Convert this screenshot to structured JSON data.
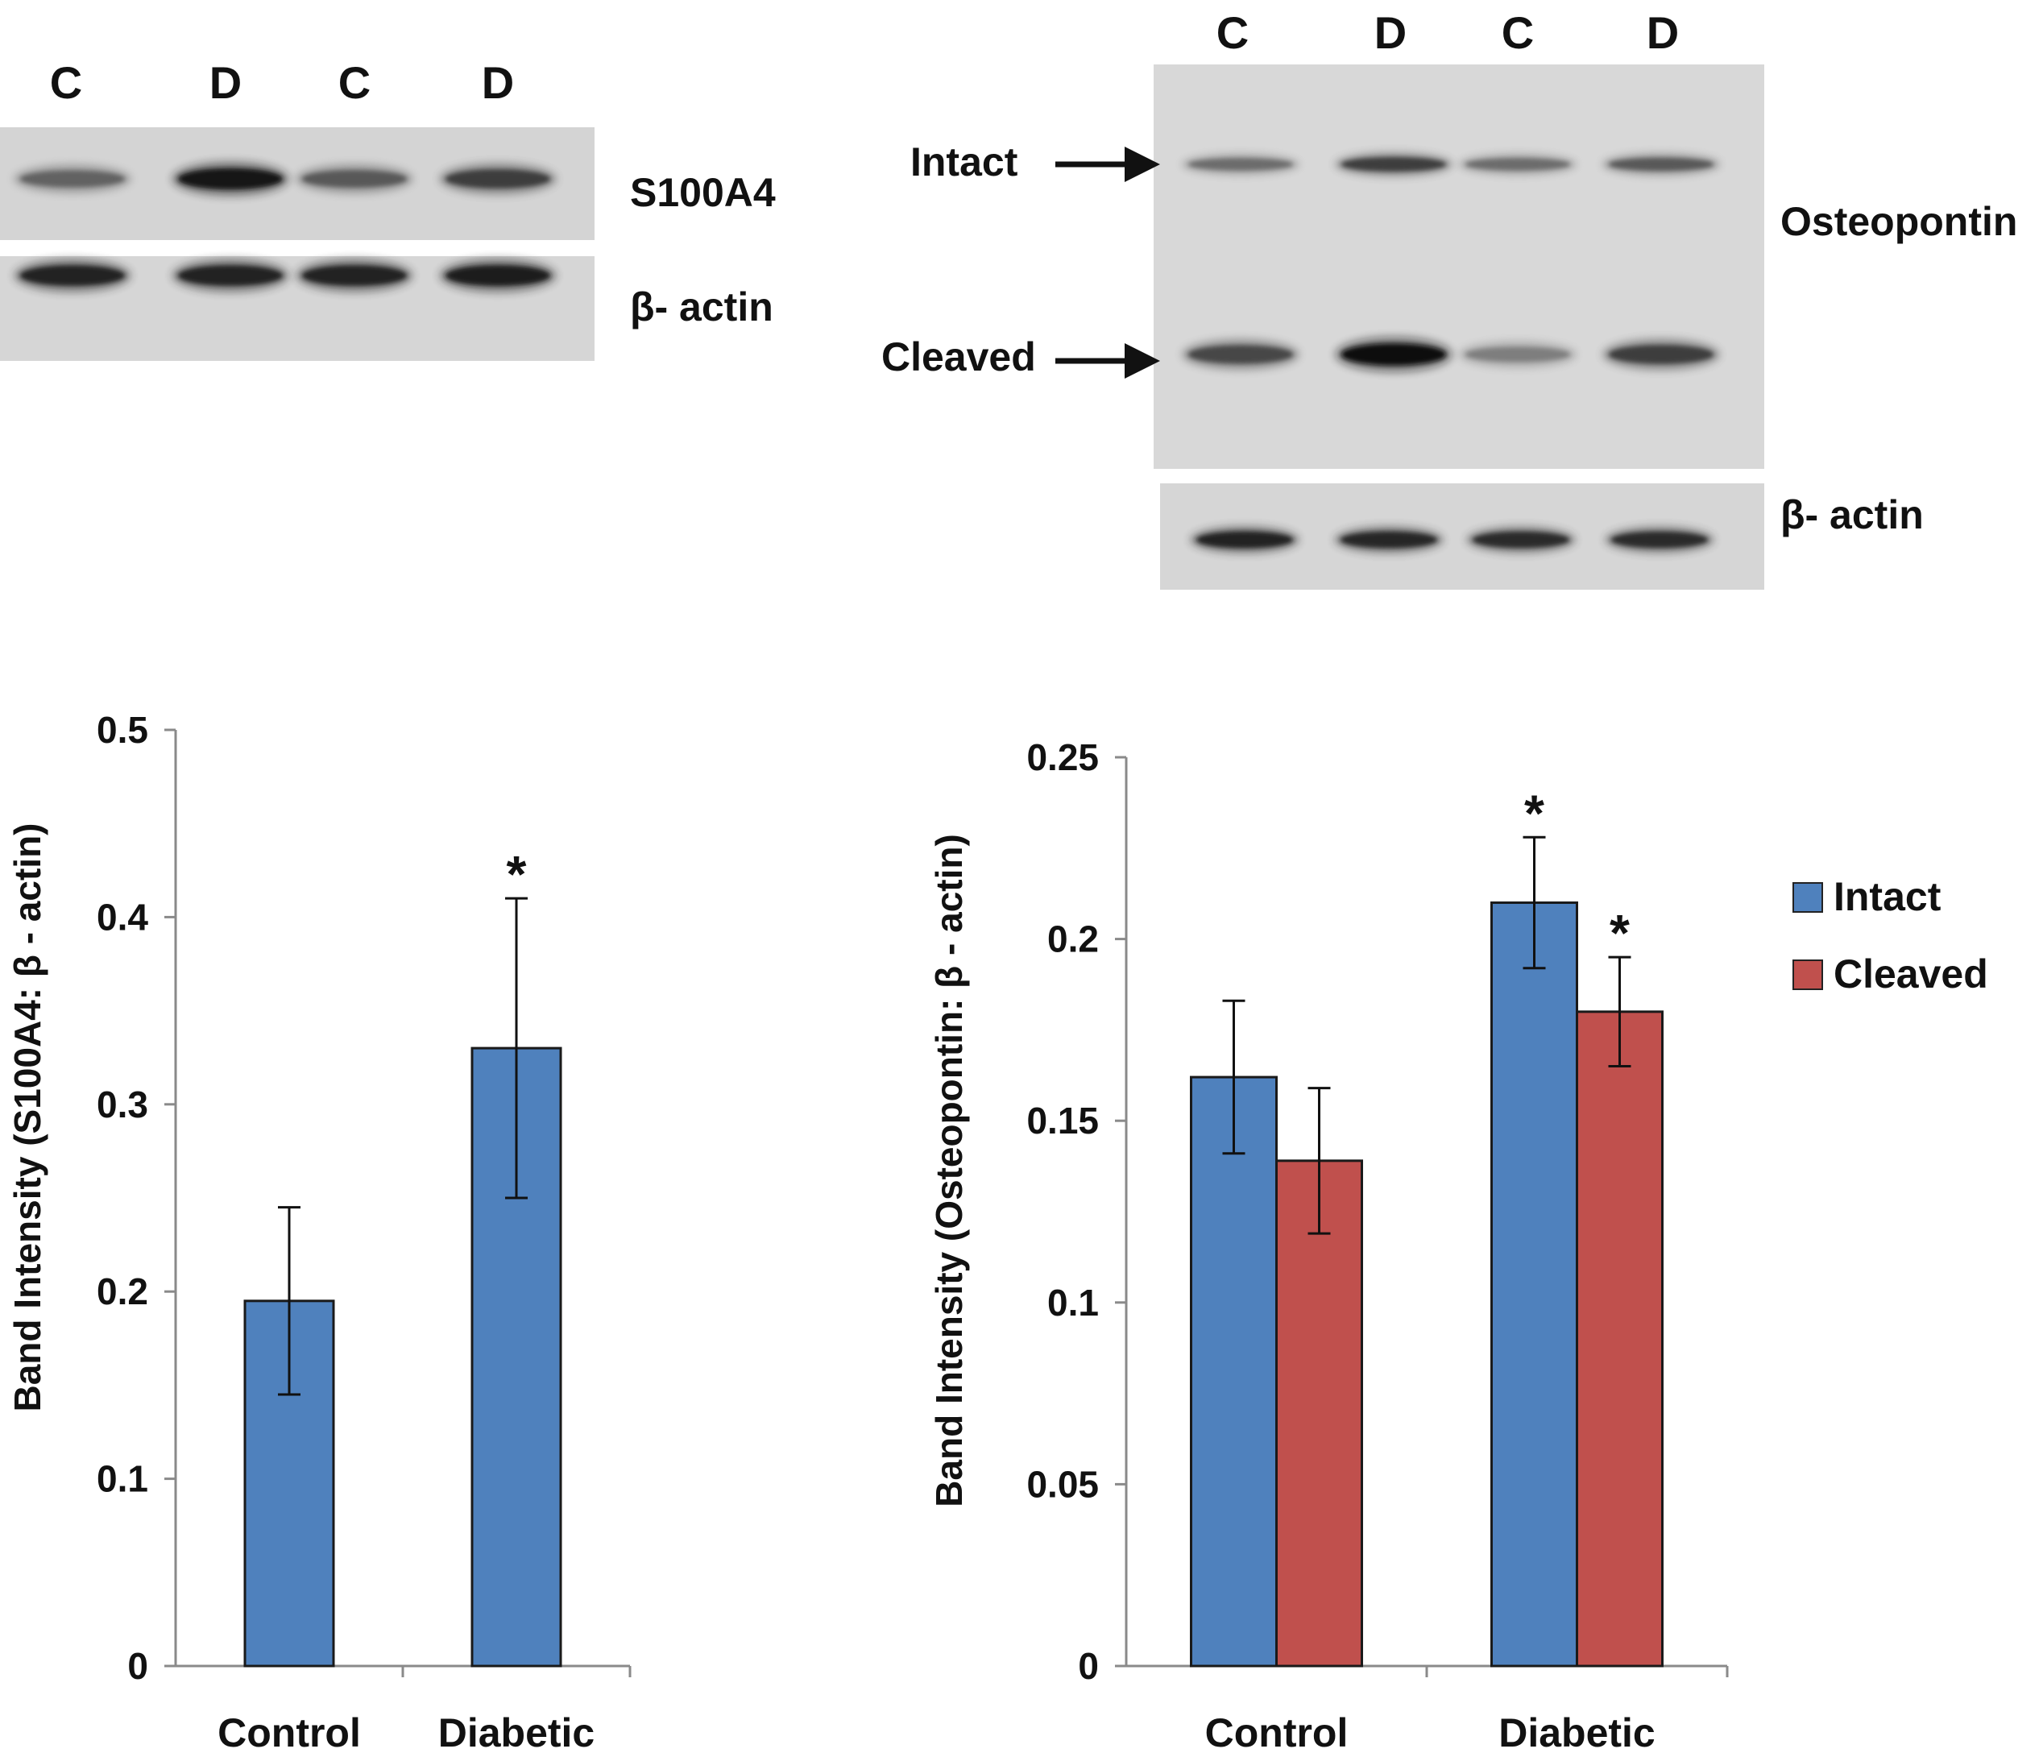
{
  "blot_left": {
    "lanes": [
      "C",
      "D",
      "C",
      "D"
    ],
    "rows": [
      {
        "label": "S100A4",
        "intensities": [
          0.55,
          0.95,
          0.6,
          0.75
        ]
      },
      {
        "label": "β- actin",
        "intensities": [
          0.9,
          0.9,
          0.9,
          0.92
        ]
      }
    ]
  },
  "blot_right": {
    "lanes": [
      "C",
      "D",
      "C",
      "D"
    ],
    "label": "Osteopontin",
    "arrow_labels": [
      "Intact",
      "Cleaved"
    ],
    "intact_intensities": [
      0.5,
      0.75,
      0.5,
      0.6
    ],
    "cleaved_intensities": [
      0.7,
      1.0,
      0.4,
      0.75
    ],
    "actin_label": "β- actin",
    "actin_intensities": [
      0.9,
      0.88,
      0.85,
      0.85
    ]
  },
  "colors": {
    "intact": "#4f81bd",
    "cleaved": "#c0504d"
  },
  "chart_data": [
    {
      "type": "bar",
      "title": "",
      "xlabel": "",
      "ylabel": "Band Intensity (S100A4: β - actin)",
      "categories": [
        "Control",
        "Diabetic"
      ],
      "series": [
        {
          "values": [
            0.195,
            0.33
          ],
          "errors": [
            0.05,
            0.08
          ],
          "significance": [
            "",
            "*"
          ]
        }
      ],
      "ylim": [
        0,
        0.5
      ],
      "yticks": [
        0,
        0.1,
        0.2,
        0.3,
        0.4,
        0.5
      ],
      "ytick_labels": [
        "0",
        "0.1",
        "0.2",
        "0.3",
        "0.4",
        "0.5"
      ],
      "grid": false,
      "legend": "none"
    },
    {
      "type": "bar",
      "title": "",
      "xlabel": "",
      "ylabel": "Band Intensity (Osteopontin: β - actin)",
      "categories": [
        "Control",
        "Diabetic"
      ],
      "series": [
        {
          "name": "Intact",
          "values": [
            0.162,
            0.21
          ],
          "errors": [
            0.021,
            0.018
          ],
          "significance": [
            "",
            "*"
          ]
        },
        {
          "name": "Cleaved",
          "values": [
            0.139,
            0.18
          ],
          "errors": [
            0.02,
            0.015
          ],
          "significance": [
            "",
            "*"
          ]
        }
      ],
      "ylim": [
        0,
        0.25
      ],
      "yticks": [
        0,
        0.05,
        0.1,
        0.15,
        0.2,
        0.25
      ],
      "ytick_labels": [
        "0",
        "0.05",
        "0.1",
        "0.15",
        "0.2",
        "0.25"
      ],
      "grid": false,
      "legend": "right"
    }
  ]
}
